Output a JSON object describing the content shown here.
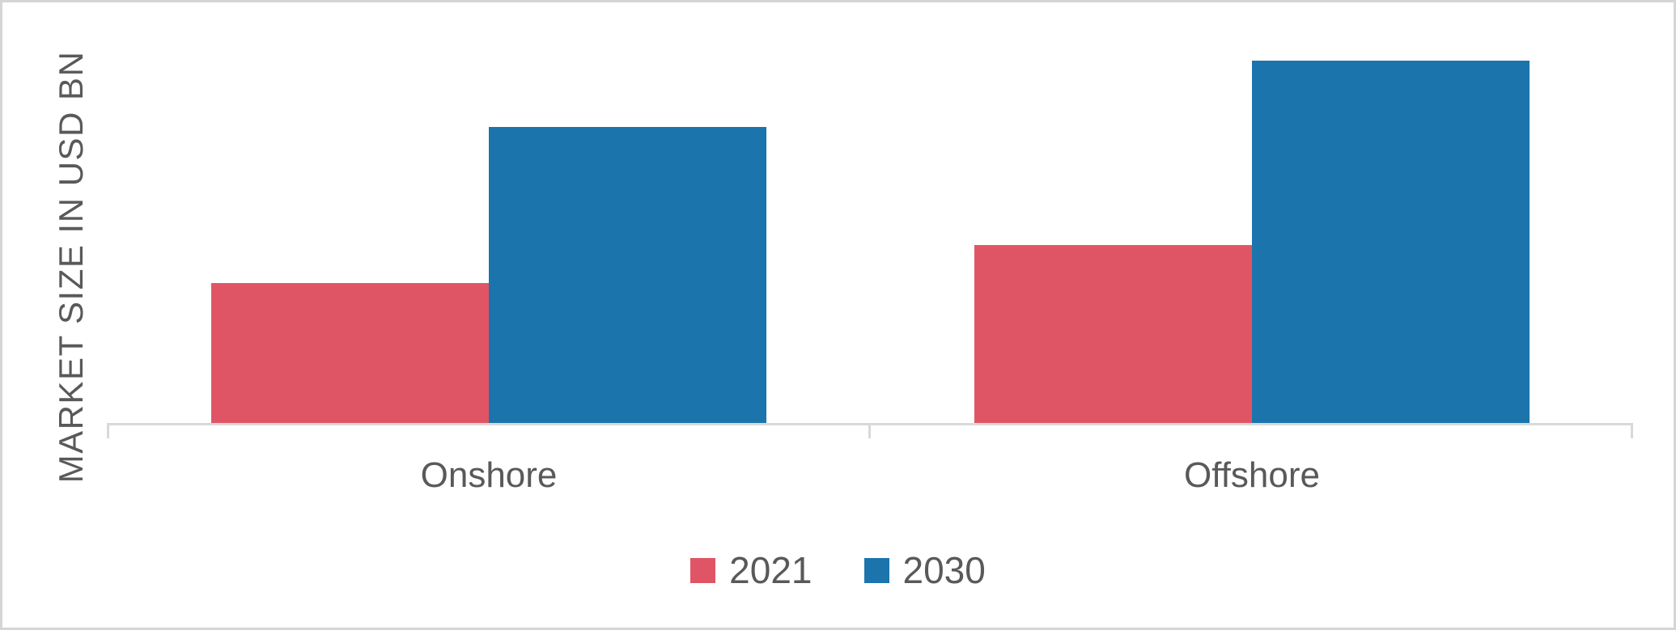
{
  "chart_data": {
    "type": "bar",
    "title": "",
    "ylabel": "MARKET SIZE IN USD BN",
    "xlabel": "",
    "categories": [
      "Onshore",
      "Offshore"
    ],
    "series": [
      {
        "name": "2021",
        "color": "#E05565",
        "values": [
          34.0,
          43.2
        ]
      },
      {
        "name": "2030",
        "color": "#1B74AC",
        "values": [
          71.6,
          87.5
        ]
      }
    ],
    "ylim": [
      0,
      100
    ],
    "y_tick_labels_shown": false,
    "grid": false,
    "legend_position": "bottom-center",
    "axis_color": "#D9D9D9",
    "text_color": "#595959"
  }
}
